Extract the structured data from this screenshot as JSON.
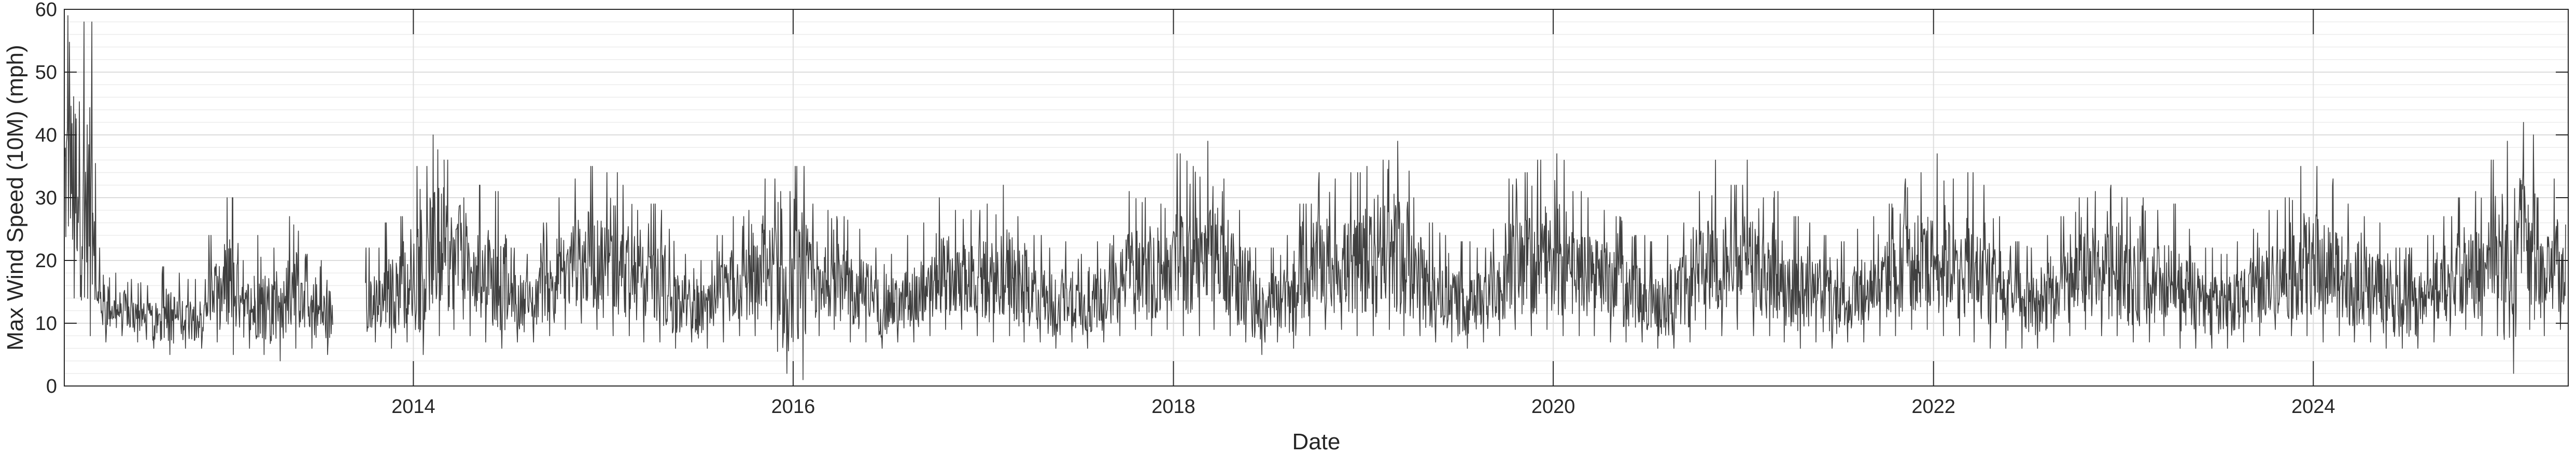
{
  "chart_data": {
    "type": "line",
    "title": "",
    "xlabel": "Date",
    "ylabel": "Max Wind Speed (10M) (mph)",
    "xlim": [
      "2012-03-01",
      "2025-05-05"
    ],
    "ylim": [
      0,
      60
    ],
    "x_ticks": [
      "2014",
      "2016",
      "2018",
      "2020",
      "2022",
      "2024"
    ],
    "y_ticks": [
      "0",
      "10",
      "20",
      "30",
      "40",
      "50",
      "60"
    ],
    "grid": true,
    "minor_grid": true,
    "legend": "none",
    "colors": {
      "line": "#404040",
      "grid": "#dcdcdc",
      "axis": "#262626"
    },
    "series": [
      {
        "sampling": "monthly envelope (daily series)",
        "x": [
          "2012-03",
          "2012-04",
          "2012-05",
          "2012-06",
          "2012-07",
          "2012-08",
          "2012-09",
          "2012-10",
          "2012-11",
          "2012-12",
          "2013-01",
          "2013-02",
          "2013-03",
          "2013-04",
          "2013-05",
          "2013-06",
          "2013-07",
          "2013-08",
          "2013-09",
          "2013-10",
          "2013-11",
          "2013-12",
          "2014-01",
          "2014-02",
          "2014-03",
          "2014-04",
          "2014-05",
          "2014-06",
          "2014-07",
          "2014-08",
          "2014-09",
          "2014-10",
          "2014-11",
          "2014-12",
          "2015-01",
          "2015-02",
          "2015-03",
          "2015-04",
          "2015-05",
          "2015-06",
          "2015-07",
          "2015-08",
          "2015-09",
          "2015-10",
          "2015-11",
          "2015-12",
          "2016-01",
          "2016-02",
          "2016-03",
          "2016-04",
          "2016-05",
          "2016-06",
          "2016-07",
          "2016-08",
          "2016-09",
          "2016-10",
          "2016-11",
          "2016-12",
          "2017-01",
          "2017-02",
          "2017-03",
          "2017-04",
          "2017-05",
          "2017-06",
          "2017-07",
          "2017-08",
          "2017-09",
          "2017-10",
          "2017-11",
          "2017-12",
          "2018-01",
          "2018-02",
          "2018-03",
          "2018-04",
          "2018-05",
          "2018-06",
          "2018-07",
          "2018-08",
          "2018-09",
          "2018-10",
          "2018-11",
          "2018-12",
          "2019-01",
          "2019-02",
          "2019-03",
          "2019-04",
          "2019-05",
          "2019-06",
          "2019-07",
          "2019-08",
          "2019-09",
          "2019-10",
          "2019-11",
          "2019-12",
          "2020-01",
          "2020-02",
          "2020-03",
          "2020-04",
          "2020-05",
          "2020-06",
          "2020-07",
          "2020-08",
          "2020-09",
          "2020-10",
          "2020-11",
          "2020-12",
          "2021-01",
          "2021-02",
          "2021-03",
          "2021-04",
          "2021-05",
          "2021-06",
          "2021-07",
          "2021-08",
          "2021-09",
          "2021-10",
          "2021-11",
          "2021-12",
          "2022-01",
          "2022-02",
          "2022-03",
          "2022-04",
          "2022-05",
          "2022-06",
          "2022-07",
          "2022-08",
          "2022-09",
          "2022-10",
          "2022-11",
          "2022-12",
          "2023-01",
          "2023-02",
          "2023-03",
          "2023-04",
          "2023-05",
          "2023-06",
          "2023-07",
          "2023-08",
          "2023-09",
          "2023-10",
          "2023-11",
          "2023-12",
          "2024-01",
          "2024-02",
          "2024-03",
          "2024-04",
          "2024-05",
          "2024-06",
          "2024-07",
          "2024-08",
          "2024-09",
          "2024-10",
          "2024-11",
          "2024-12",
          "2025-01",
          "2025-02",
          "2025-03",
          "2025-04"
        ],
        "max": [
          59,
          58,
          22,
          18,
          17,
          16,
          19,
          18,
          17,
          24,
          30,
          20,
          24,
          22,
          27,
          21,
          20,
          22,
          19,
          22,
          26,
          27,
          35,
          40,
          36,
          30,
          32,
          31,
          22,
          21,
          26,
          30,
          33,
          35,
          34,
          32,
          28,
          29,
          25,
          21,
          20,
          24,
          27,
          28,
          33,
          31,
          35,
          29,
          28,
          27,
          25,
          22,
          21,
          24,
          26,
          30,
          28,
          28,
          29,
          32,
          27,
          24,
          22,
          23,
          21,
          23,
          24,
          31,
          30,
          29,
          37,
          35,
          39,
          33,
          28,
          22,
          22,
          24,
          29,
          34,
          33,
          34,
          35,
          36,
          39,
          30,
          26,
          24,
          23,
          22,
          25,
          33,
          34,
          36,
          37,
          31,
          30,
          28,
          27,
          24,
          23,
          24,
          26,
          31,
          36,
          32,
          36,
          30,
          31,
          27,
          26,
          24,
          23,
          25,
          27,
          29,
          33,
          34,
          37,
          33,
          34,
          32,
          27,
          23,
          22,
          24,
          27,
          30,
          31,
          32,
          30,
          30,
          28,
          29,
          25,
          22,
          21,
          23,
          25,
          28,
          30,
          35,
          35,
          33,
          29,
          27,
          26,
          22,
          22,
          24,
          27,
          30,
          31,
          36,
          39,
          42,
          30,
          33
        ],
        "min": [
          14,
          8,
          7,
          8,
          7,
          6,
          5,
          6,
          6,
          7,
          5,
          6,
          5,
          4,
          6,
          6,
          5,
          6,
          5,
          7,
          6,
          7,
          5,
          8,
          9,
          8,
          7,
          6,
          7,
          7,
          8,
          9,
          10,
          9,
          8,
          8,
          7,
          7,
          6,
          7,
          6,
          7,
          8,
          8,
          9,
          2,
          1,
          8,
          9,
          7,
          7,
          6,
          7,
          7,
          8,
          9,
          9,
          8,
          7,
          8,
          7,
          7,
          6,
          7,
          6,
          7,
          8,
          9,
          8,
          9,
          8,
          8,
          9,
          8,
          7,
          5,
          7,
          6,
          8,
          9,
          9,
          8,
          8,
          9,
          8,
          8,
          7,
          7,
          6,
          7,
          8,
          9,
          8,
          9,
          8,
          8,
          8,
          7,
          7,
          7,
          6,
          6,
          7,
          9,
          8,
          9,
          8,
          8,
          7,
          6,
          7,
          6,
          7,
          7,
          8,
          8,
          9,
          9,
          8,
          8,
          7,
          6,
          6,
          6,
          6,
          7,
          8,
          9,
          8,
          8,
          7,
          7,
          8,
          6,
          6,
          6,
          6,
          7,
          8,
          9,
          8,
          8,
          7,
          8,
          7,
          7,
          6,
          6,
          6,
          7,
          8,
          9,
          8,
          8,
          2,
          9,
          8,
          9
        ],
        "gaps": [
          [
            "2013-08",
            "2013-09"
          ]
        ]
      }
    ]
  }
}
